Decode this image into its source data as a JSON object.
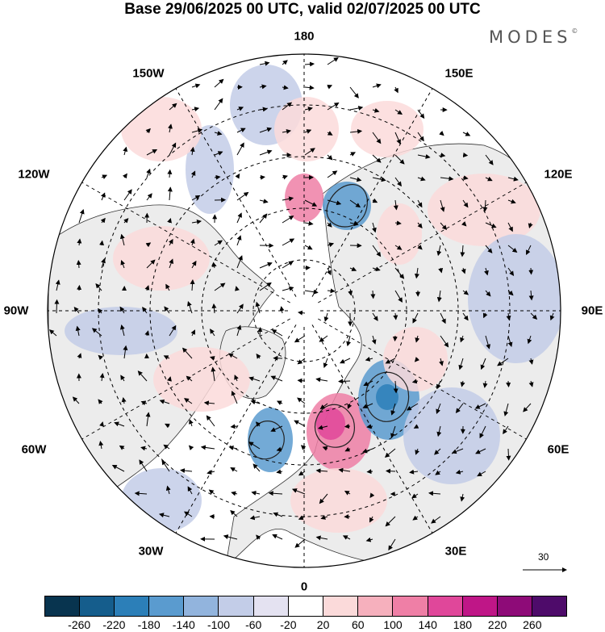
{
  "title": "Base 29/06/2025 00 UTC, valid 02/07/2025 00 UTC",
  "brand": "MODES",
  "brand_mark": "©",
  "longitude_labels": {
    "top": "180",
    "bottom": "0",
    "left": "90W",
    "right": "90E",
    "upper_left": "150W",
    "upper_right": "150E",
    "mid_left": "120W",
    "mid_right": "120E",
    "lower_left": "60W",
    "lower_right": "60E",
    "bottom_left": "30W",
    "bottom_right": "30E"
  },
  "reference_vector": {
    "label": "30"
  },
  "colorbar": {
    "ticks": [
      "-260",
      "-220",
      "-180",
      "-140",
      "-100",
      "-60",
      "-20",
      "20",
      "60",
      "100",
      "140",
      "180",
      "220",
      "260"
    ],
    "colors": [
      "#08344f",
      "#155d8c",
      "#2c7fb8",
      "#5a9bcf",
      "#92b4dd",
      "#c3cde8",
      "#e4e2f1",
      "#ffffff",
      "#fbdada",
      "#f6b0bd",
      "#ef7fa6",
      "#e0479a",
      "#bf1687",
      "#8e0b78",
      "#4e0b6a"
    ]
  },
  "colors": {
    "negative_strong": "#5a9bcf",
    "negative_weak": "#c3cde8",
    "positive_weak": "#fbdada",
    "positive_strong": "#ef7fa6",
    "land": "#ececec"
  }
}
